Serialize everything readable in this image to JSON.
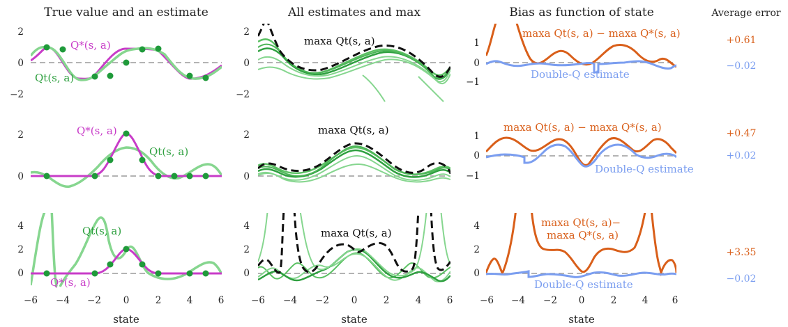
{
  "colors": {
    "true": "#c83cc8",
    "estimate": "#5cc164",
    "estimate_light": "#86d68f",
    "estimate_dark": "#2fa040",
    "dot": "#1f9a3a",
    "max": "#111111",
    "zero": "#9a9a9a",
    "bias": "#d95f1a",
    "double_q": "#7b9ef0"
  },
  "column_titles": [
    "True value and an estimate",
    "All estimates and max",
    "Bias as function of state",
    "Average error"
  ],
  "x_axis_label": "state",
  "x_ticks": [
    "−6",
    "−4",
    "−2",
    "0",
    "2",
    "4",
    "6"
  ],
  "rows": [
    {
      "col1_yticks": [
        "2",
        "0",
        "−2"
      ],
      "col2_yticks": [
        "2",
        "0",
        "−2"
      ],
      "col3_yticks": [
        "1",
        "0",
        "−1"
      ],
      "labels": {
        "true": "Q*(s, a)",
        "estimate": "Qt(s, a)",
        "max": "maxa Qt(s, a)",
        "bias": "maxa Qt(s, a) − maxa Q*(s, a)",
        "double_q": "Double-Q estimate"
      },
      "average_error": {
        "bias": "+0.61",
        "double_q": "−0.02"
      }
    },
    {
      "col1_yticks": [
        "2",
        "0"
      ],
      "col2_yticks": [
        "2",
        "0"
      ],
      "col3_yticks": [
        "1",
        "0",
        "−1"
      ],
      "labels": {
        "true": "Q*(s, a)",
        "estimate": "Qt(s, a)",
        "max": "maxa Qt(s, a)",
        "bias": "maxa Qt(s, a) − maxa Q*(s, a)",
        "double_q": "Double-Q estimate"
      },
      "average_error": {
        "bias": "+0.47",
        "double_q": "+0.02"
      }
    },
    {
      "col1_yticks": [
        "4",
        "2",
        "0"
      ],
      "col2_yticks": [
        "4",
        "2",
        "0"
      ],
      "col3_yticks": [
        "4",
        "2",
        "0"
      ],
      "labels": {
        "true": "Q*(s, a)",
        "estimate": "Qt(s, a)",
        "max": "maxa Qt(s, a)",
        "bias_line1": "maxa Qt(s, a)−",
        "bias_line2": "maxa Q*(s, a)",
        "double_q": "Double-Q estimate"
      },
      "average_error": {
        "bias": "+3.35",
        "double_q": "−0.02"
      }
    }
  ],
  "chart_data": {
    "type": "line",
    "xlabel": "state",
    "xlim": [
      -6,
      6
    ],
    "panels": [
      {
        "row": 1,
        "col": 1,
        "title": "True value and an estimate",
        "ylim": [
          -2.5,
          2.5
        ],
        "series": [
          {
            "name": "Q*(s, a)",
            "function": "sin(x)"
          },
          {
            "name": "Qt(s, a)",
            "function": "polynomial fit through sampled points"
          }
        ],
        "points_x": [
          -5,
          -4,
          -2,
          -1,
          0,
          1,
          2,
          4,
          5
        ],
        "points_y": [
          0.96,
          0.76,
          -0.91,
          -0.84,
          0.0,
          0.84,
          0.91,
          -0.76,
          -0.96
        ]
      },
      {
        "row": 1,
        "col": 2,
        "title": "All estimates and max",
        "ylim": [
          -2.5,
          2.5
        ],
        "series": [
          {
            "name": "maxa Qt(s, a)"
          }
        ]
      },
      {
        "row": 1,
        "col": 3,
        "title": "Bias as function of state",
        "ylim": [
          -1.5,
          1.5
        ],
        "series": [
          {
            "name": "maxa Qt(s, a) − maxa Q*(s, a)",
            "average": 0.61
          },
          {
            "name": "Double-Q estimate",
            "average": -0.02
          }
        ]
      },
      {
        "row": 2,
        "col": 1,
        "ylim": [
          -0.5,
          2.5
        ],
        "series": [
          {
            "name": "Q*(s, a)",
            "function": "2 exp(−x²)"
          },
          {
            "name": "Qt(s, a)"
          }
        ],
        "points_x": [
          -5,
          -2,
          -1,
          0,
          1,
          2,
          4,
          5
        ],
        "points_y": [
          0,
          0.04,
          0.74,
          2.0,
          0.74,
          0.04,
          0,
          0
        ]
      },
      {
        "row": 2,
        "col": 2,
        "ylim": [
          -0.5,
          2.5
        ],
        "series": [
          {
            "name": "maxa Qt(s, a)"
          }
        ]
      },
      {
        "row": 2,
        "col": 3,
        "ylim": [
          -1.5,
          1.5
        ],
        "series": [
          {
            "name": "maxa Qt(s, a) − maxa Q*(s, a)",
            "average": 0.47
          },
          {
            "name": "Double-Q estimate",
            "average": 0.02
          }
        ]
      },
      {
        "row": 3,
        "col": 1,
        "ylim": [
          -0.5,
          5
        ],
        "series": [
          {
            "name": "Q*(s, a)",
            "function": "2 exp(−x²)"
          },
          {
            "name": "Qt(s, a)"
          }
        ],
        "points_x": [
          -5,
          -2,
          -1,
          0,
          1,
          2,
          4,
          5
        ],
        "points_y": [
          0,
          0.04,
          0.74,
          2.0,
          0.74,
          0.04,
          0,
          0
        ]
      },
      {
        "row": 3,
        "col": 2,
        "ylim": [
          -0.5,
          5
        ],
        "series": [
          {
            "name": "maxa Qt(s, a)"
          }
        ]
      },
      {
        "row": 3,
        "col": 3,
        "ylim": [
          -0.5,
          5
        ],
        "series": [
          {
            "name": "maxa Qt(s, a)− maxa Q*(s, a)",
            "average": 3.35
          },
          {
            "name": "Double-Q estimate",
            "average": -0.02
          }
        ]
      }
    ]
  }
}
